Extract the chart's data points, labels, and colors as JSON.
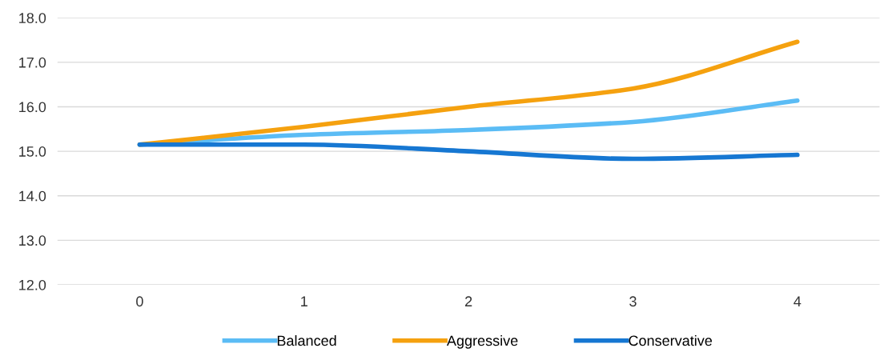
{
  "chart_data": {
    "type": "line",
    "categories": [
      "0",
      "1",
      "2",
      "3",
      "4"
    ],
    "series": [
      {
        "name": "Balanced",
        "color": "#5bbcf5",
        "values": [
          15.15,
          15.37,
          15.48,
          15.66,
          16.14
        ]
      },
      {
        "name": "Aggressive",
        "color": "#f5a10f",
        "values": [
          15.15,
          15.55,
          16.0,
          16.41,
          17.46
        ]
      },
      {
        "name": "Conservative",
        "color": "#1677d2",
        "values": [
          15.15,
          15.15,
          15.0,
          14.83,
          14.92
        ]
      }
    ],
    "ylim": [
      12,
      18
    ],
    "yticks": [
      {
        "value": 12,
        "label": "12.0"
      },
      {
        "value": 13,
        "label": "13.0"
      },
      {
        "value": 14,
        "label": "14.0"
      },
      {
        "value": 15,
        "label": "15.0"
      },
      {
        "value": 16,
        "label": "16.0"
      },
      {
        "value": 17,
        "label": "17.0"
      },
      {
        "value": 18,
        "label": "18.0"
      }
    ],
    "grid": "y",
    "legend": "bottom",
    "marker": "none",
    "line_style": "solid"
  }
}
